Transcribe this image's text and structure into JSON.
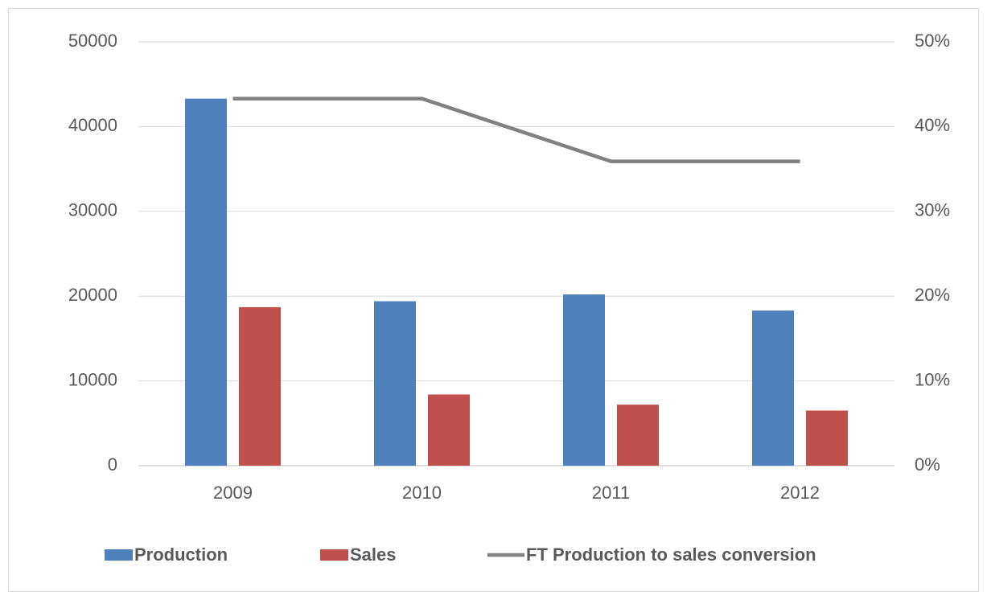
{
  "chart_data": {
    "type": "bar",
    "categories": [
      "2009",
      "2010",
      "2011",
      "2012"
    ],
    "series": [
      {
        "name": "Production",
        "color": "#4f81bd",
        "values": [
          43300,
          19400,
          20200,
          18300
        ]
      },
      {
        "name": "Sales",
        "color": "#c0504d",
        "values": [
          18700,
          8400,
          7200,
          6500
        ]
      },
      {
        "name": "FT Production to sales conversion",
        "color": "#808080",
        "type": "line",
        "axis": "y2",
        "values": [
          43.3,
          43.3,
          35.9,
          35.9
        ]
      }
    ],
    "ylim": [
      0,
      50000
    ],
    "yticks": [
      0,
      10000,
      20000,
      30000,
      40000,
      50000
    ],
    "y2lim": [
      0,
      50
    ],
    "y2ticks": [
      {
        "value": 0,
        "label": "0%"
      },
      {
        "value": 10,
        "label": "10%"
      },
      {
        "value": 20,
        "label": "20%"
      },
      {
        "value": 30,
        "label": "30%"
      },
      {
        "value": 40,
        "label": "40%"
      },
      {
        "value": 50,
        "label": "50%"
      }
    ],
    "grid": true,
    "legend": "bottom"
  }
}
